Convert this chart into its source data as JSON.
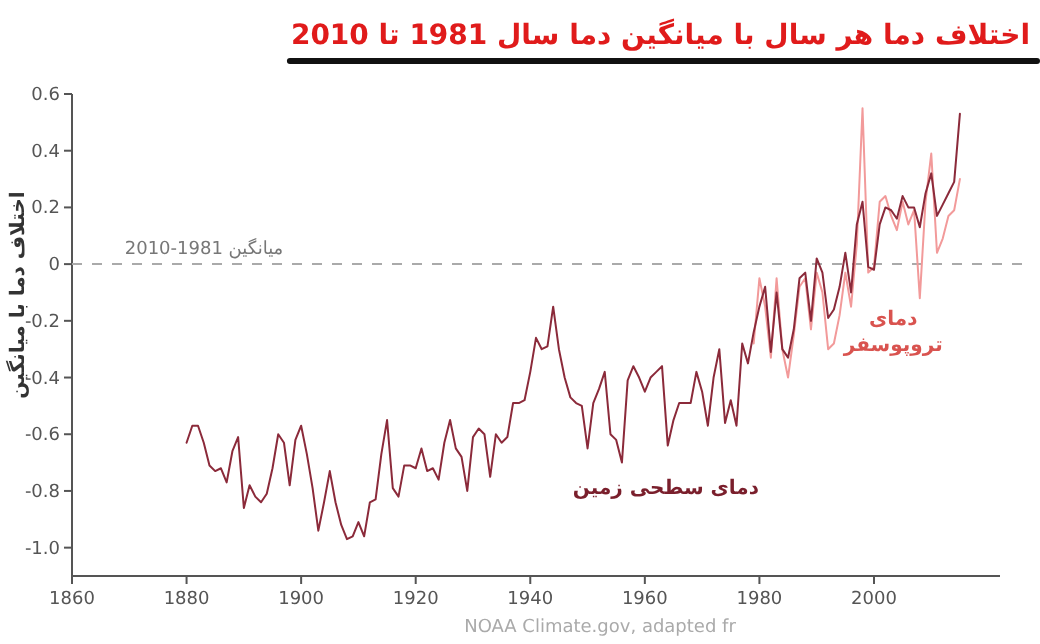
{
  "chart_data": {
    "type": "line",
    "title": "اختلاف دما هر سال با میانگین دما سال 1981 تا 2010",
    "ylabel": "اختلاف دما با میانگین",
    "xlim": [
      1860,
      2022
    ],
    "xticks": [
      1860,
      1880,
      1900,
      1920,
      1940,
      1960,
      1980,
      2000
    ],
    "ylim": [
      -1.1,
      0.6
    ],
    "yticks": [
      0.6,
      0.4,
      0.2,
      0,
      -0.2,
      -0.4,
      -0.6,
      -0.8,
      {
        "value": -1,
        "label": "-1.0"
      }
    ],
    "legend": false,
    "grid": false,
    "marker": "none",
    "line_style": "solid",
    "ref_lines": [
      {
        "axis": "y",
        "value": 0,
        "label": "میانگین 1981-2010",
        "color": "#aaaaaa",
        "line_style": "dashed"
      }
    ],
    "annotations": [
      "NOAA Climate.gov, adapted fr"
    ],
    "series": [
      {
        "name": "دمای سطحی زمین",
        "color": "#8b2a3a",
        "x": [
          1880,
          1881,
          1882,
          1883,
          1884,
          1885,
          1886,
          1887,
          1888,
          1889,
          1890,
          1891,
          1892,
          1893,
          1894,
          1895,
          1896,
          1897,
          1898,
          1899,
          1900,
          1901,
          1902,
          1903,
          1904,
          1905,
          1906,
          1907,
          1908,
          1909,
          1910,
          1911,
          1912,
          1913,
          1914,
          1915,
          1916,
          1917,
          1918,
          1919,
          1920,
          1921,
          1922,
          1923,
          1924,
          1925,
          1926,
          1927,
          1928,
          1929,
          1930,
          1931,
          1932,
          1933,
          1934,
          1935,
          1936,
          1937,
          1938,
          1939,
          1940,
          1941,
          1942,
          1943,
          1944,
          1945,
          1946,
          1947,
          1948,
          1949,
          1950,
          1951,
          1952,
          1953,
          1954,
          1955,
          1956,
          1957,
          1958,
          1959,
          1960,
          1961,
          1962,
          1963,
          1964,
          1965,
          1966,
          1967,
          1968,
          1969,
          1970,
          1971,
          1972,
          1973,
          1974,
          1975,
          1976,
          1977,
          1978,
          1979,
          1980,
          1981,
          1982,
          1983,
          1984,
          1985,
          1986,
          1987,
          1988,
          1989,
          1990,
          1991,
          1992,
          1993,
          1994,
          1995,
          1996,
          1997,
          1998,
          1999,
          2000,
          2001,
          2002,
          2003,
          2004,
          2005,
          2006,
          2007,
          2008,
          2009,
          2010,
          2011,
          2012,
          2013,
          2014,
          2015
        ],
        "values": [
          -0.63,
          -0.57,
          -0.57,
          -0.63,
          -0.71,
          -0.73,
          -0.72,
          -0.77,
          -0.66,
          -0.61,
          -0.86,
          -0.78,
          -0.82,
          -0.84,
          -0.81,
          -0.72,
          -0.6,
          -0.63,
          -0.78,
          -0.62,
          -0.57,
          -0.67,
          -0.79,
          -0.94,
          -0.84,
          -0.73,
          -0.84,
          -0.92,
          -0.97,
          -0.96,
          -0.91,
          -0.96,
          -0.84,
          -0.83,
          -0.67,
          -0.55,
          -0.79,
          -0.82,
          -0.71,
          -0.71,
          -0.72,
          -0.65,
          -0.73,
          -0.72,
          -0.76,
          -0.63,
          -0.55,
          -0.65,
          -0.68,
          -0.8,
          -0.61,
          -0.58,
          -0.6,
          -0.75,
          -0.6,
          -0.63,
          -0.61,
          -0.49,
          -0.49,
          -0.48,
          -0.38,
          -0.26,
          -0.3,
          -0.29,
          -0.15,
          -0.3,
          -0.4,
          -0.47,
          -0.49,
          -0.5,
          -0.65,
          -0.49,
          -0.44,
          -0.38,
          -0.6,
          -0.62,
          -0.7,
          -0.41,
          -0.36,
          -0.4,
          -0.45,
          -0.4,
          -0.38,
          -0.36,
          -0.64,
          -0.55,
          -0.49,
          -0.49,
          -0.49,
          -0.38,
          -0.45,
          -0.57,
          -0.4,
          -0.3,
          -0.56,
          -0.48,
          -0.57,
          -0.28,
          -0.35,
          -0.24,
          -0.15,
          -0.08,
          -0.31,
          -0.1,
          -0.3,
          -0.33,
          -0.23,
          -0.05,
          -0.03,
          -0.2,
          0.02,
          -0.03,
          -0.19,
          -0.16,
          -0.08,
          0.04,
          -0.1,
          0.14,
          0.22,
          -0.01,
          -0.02,
          0.14,
          0.2,
          0.19,
          0.16,
          0.24,
          0.2,
          0.2,
          0.13,
          0.25,
          0.32,
          0.17,
          0.21,
          0.25,
          0.29,
          0.53
        ]
      },
      {
        "name": "دمای تروپوسفر",
        "color": "#f29a9a",
        "x": [
          1979,
          1980,
          1981,
          1982,
          1983,
          1984,
          1985,
          1986,
          1987,
          1988,
          1989,
          1990,
          1991,
          1992,
          1993,
          1994,
          1995,
          1996,
          1997,
          1998,
          1999,
          2000,
          2001,
          2002,
          2003,
          2004,
          2005,
          2006,
          2007,
          2008,
          2009,
          2010,
          2011,
          2012,
          2013,
          2014,
          2015
        ],
        "values": [
          -0.28,
          -0.05,
          -0.15,
          -0.33,
          -0.05,
          -0.3,
          -0.4,
          -0.25,
          -0.08,
          -0.05,
          -0.23,
          -0.03,
          -0.1,
          -0.3,
          -0.28,
          -0.18,
          -0.03,
          -0.15,
          0.07,
          0.55,
          -0.03,
          -0.01,
          0.22,
          0.24,
          0.17,
          0.12,
          0.22,
          0.14,
          0.19,
          -0.12,
          0.22,
          0.39,
          0.04,
          0.09,
          0.17,
          0.19,
          0.3
        ]
      }
    ]
  }
}
